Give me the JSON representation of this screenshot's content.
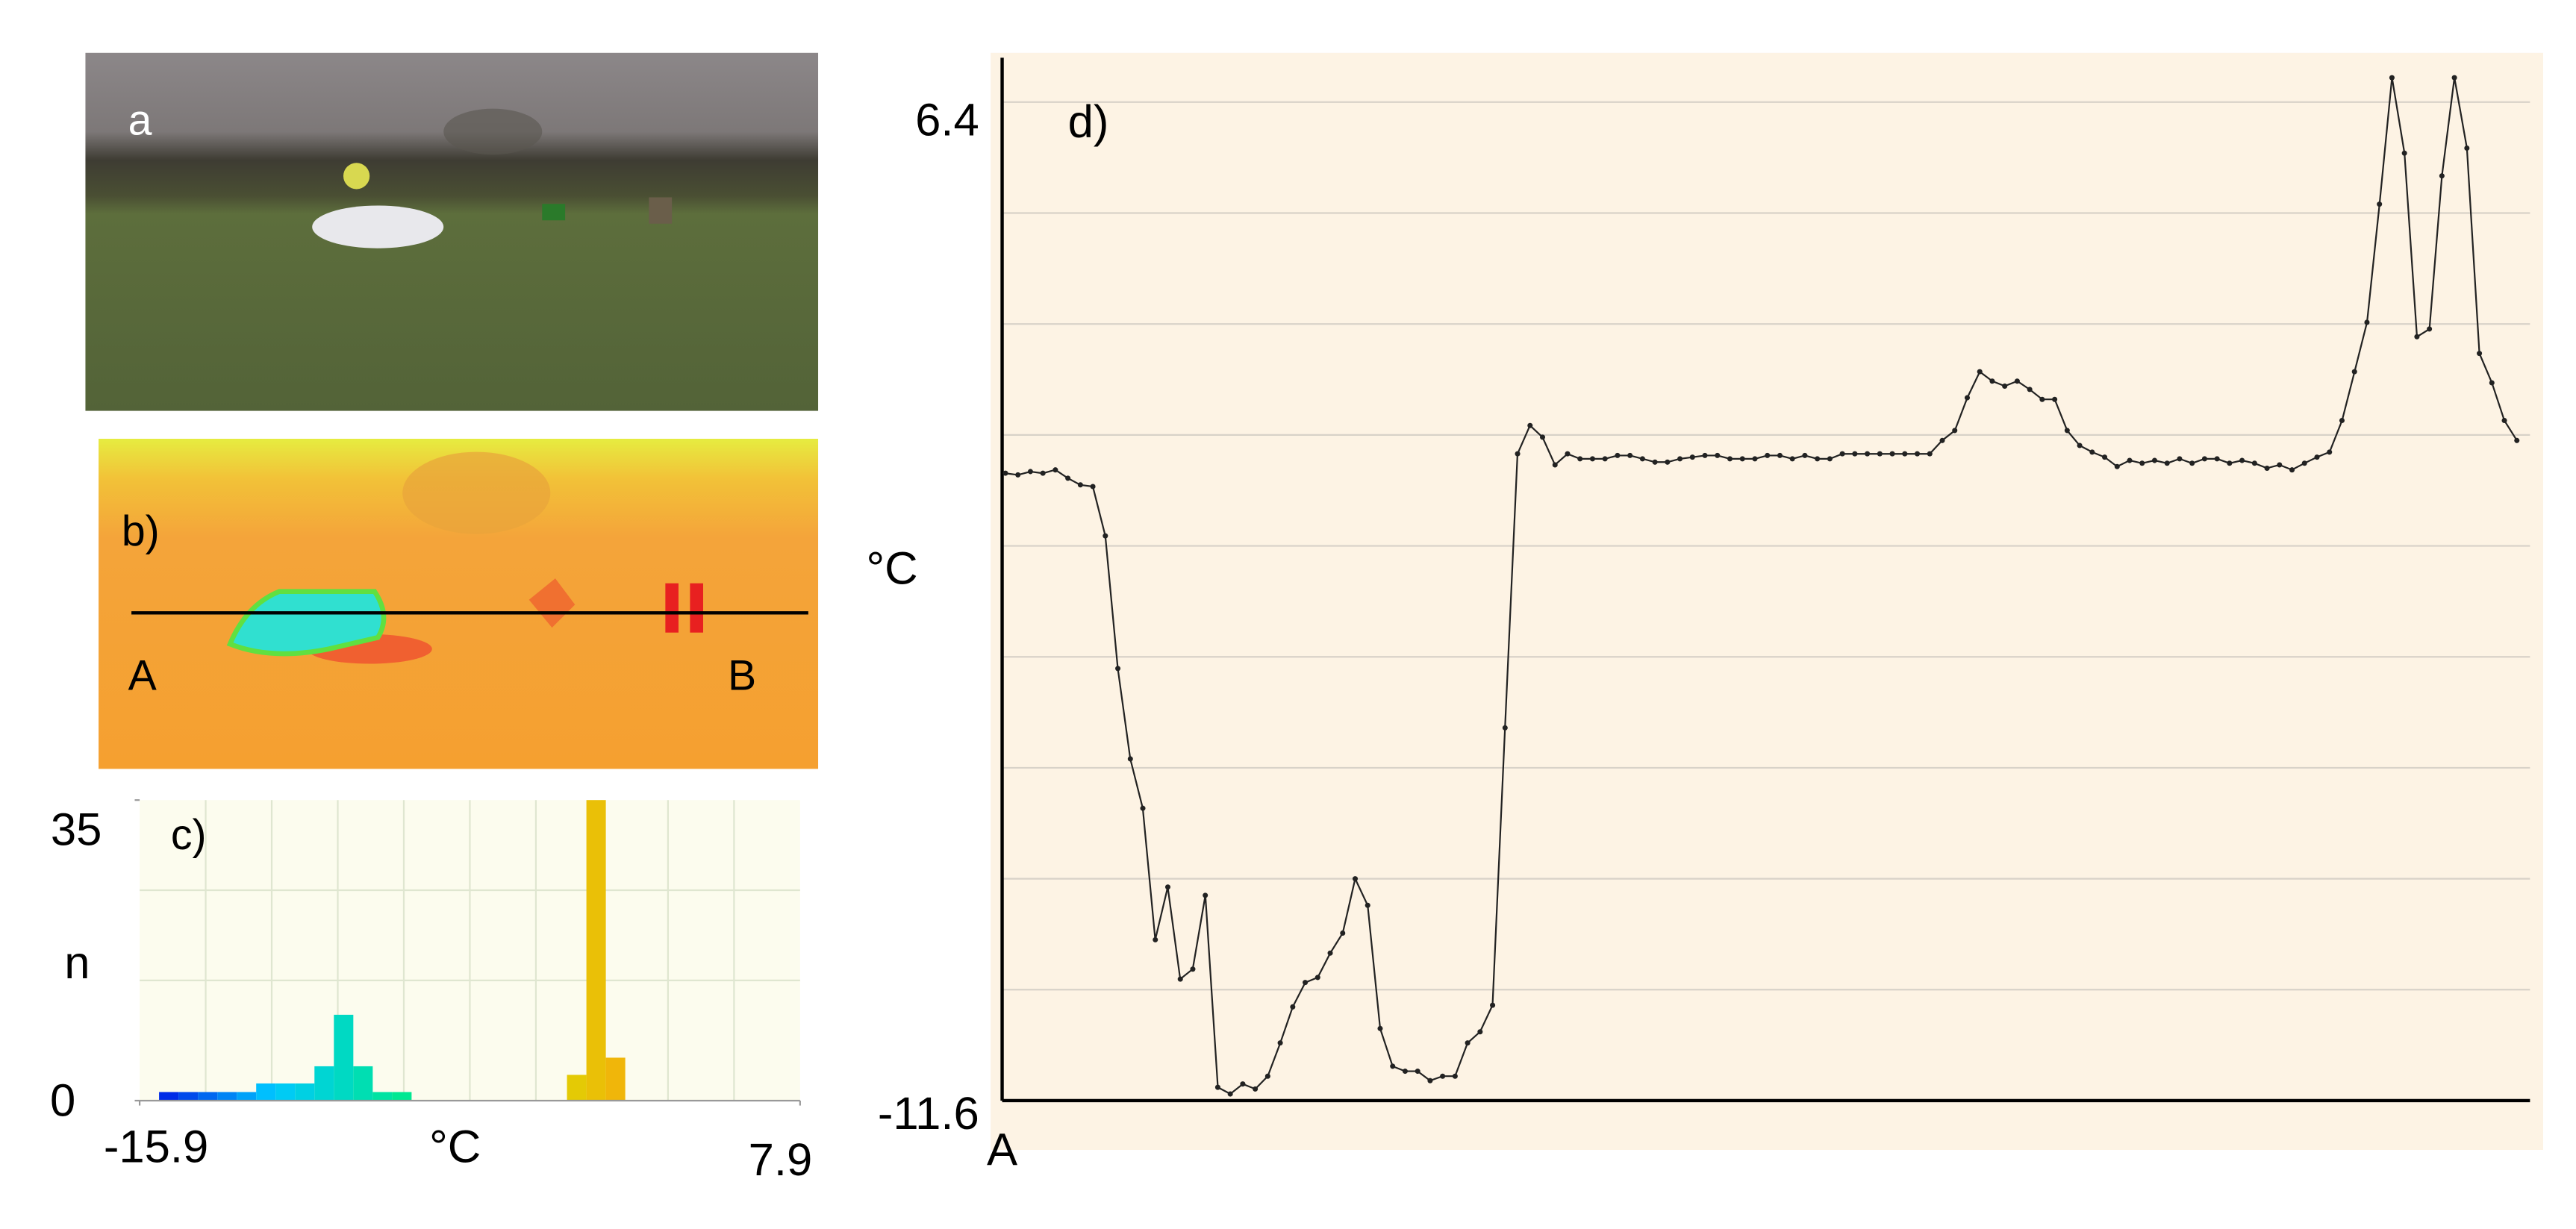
{
  "panels": [
    {
      "label": "a"
    },
    {
      "label": "b)",
      "start": "A",
      "end": "B"
    }
  ],
  "chart_data": [
    {
      "type": "histogram",
      "label": "c)",
      "xlabel": "°C",
      "ylabel": "n",
      "bins": [
        -15.9,
        -15.2,
        -14.5,
        -13.8,
        -13.1,
        -12.4,
        -11.7,
        -11,
        -10.3,
        -9.6,
        -8.9,
        -8.2,
        -7.5,
        -6.8,
        -6.1,
        -5.4,
        -4.7,
        -4,
        -3.3,
        -2.6,
        -1.9,
        -1.2,
        -0.5,
        0.2,
        0.9,
        1.6,
        2.3,
        3,
        3.7,
        4.4,
        5.1,
        5.8,
        6.5,
        7.2,
        7.9
      ],
      "values": [
        0,
        1,
        1,
        1,
        1,
        1,
        2,
        2,
        2,
        4,
        10,
        4,
        1,
        1,
        0,
        0,
        0,
        0,
        0,
        0,
        0,
        0,
        3,
        35,
        5,
        0,
        0,
        0,
        0,
        0,
        0,
        0,
        0,
        0
      ],
      "xlim": [
        -15.9,
        7.9
      ],
      "xticks": [
        -15.9,
        7.9
      ],
      "ylim": [
        0,
        35
      ],
      "yticks": [
        35,
        0
      ],
      "colormap": [
        "#0000e0",
        "#00c8ff",
        "#00e890",
        "#d8e000",
        "#ff9a10",
        "#ff2000"
      ],
      "grid": true
    },
    {
      "type": "line",
      "label": "d)",
      "ylabel": "°C",
      "xlabel": "A",
      "color": "#222222",
      "values": [
        -0.29,
        -0.32,
        -0.26,
        -0.29,
        -0.23,
        -0.38,
        -0.5,
        -0.53,
        -1.42,
        -3.81,
        -5.44,
        -6.33,
        -8.7,
        -7.75,
        -9.41,
        -9.23,
        -7.9,
        -11.36,
        -11.48,
        -11.3,
        -11.39,
        -11.16,
        -10.56,
        -9.91,
        -9.47,
        -9.38,
        -8.94,
        -8.58,
        -7.6,
        -8.08,
        -10.3,
        -10.98,
        -11.07,
        -11.07,
        -11.24,
        -11.16,
        -11.16,
        -10.56,
        -10.36,
        -9.88,
        -4.88,
        0.06,
        0.57,
        0.36,
        -0.14,
        0.06,
        -0.03,
        -0.03,
        -0.03,
        0.03,
        0.03,
        -0.03,
        -0.09,
        -0.09,
        -0.03,
        0,
        0.03,
        0.03,
        -0.03,
        -0.03,
        -0.03,
        0.03,
        0.03,
        -0.03,
        0.03,
        -0.03,
        -0.03,
        0.06,
        0.06,
        0.06,
        0.06,
        0.06,
        0.06,
        0.06,
        0.06,
        0.3,
        0.48,
        1.07,
        1.54,
        1.37,
        1.28,
        1.37,
        1.22,
        1.04,
        1.04,
        0.48,
        0.21,
        0.09,
        0,
        -0.17,
        -0.06,
        -0.11,
        -0.06,
        -0.11,
        -0.03,
        -0.11,
        -0.03,
        -0.03,
        -0.11,
        -0.06,
        -0.11,
        -0.2,
        -0.14,
        -0.23,
        -0.11,
        0,
        0.09,
        0.66,
        1.54,
        2.43,
        4.56,
        6.84,
        5.48,
        2.17,
        2.31,
        5.07,
        6.84,
        5.57,
        1.87,
        1.34,
        0.66,
        0.3
      ],
      "ylim": [
        -11.6,
        6.4
      ],
      "yticks": [
        6.4,
        -11.6
      ],
      "grid_values": [
        -9.6,
        -7.6,
        -5.6,
        -3.6,
        -1.6,
        0.4,
        2.4,
        4.4
      ],
      "background": "#fdf3e4"
    }
  ]
}
